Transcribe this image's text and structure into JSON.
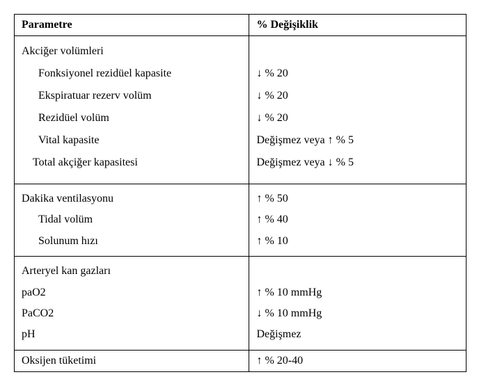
{
  "table": {
    "headers": {
      "parameter": "Parametre",
      "change": "% Değişiklik"
    },
    "rows": [
      {
        "left": [
          {
            "text": "Akciğer volümleri",
            "indent": 0
          },
          {
            "text": "Fonksiyonel rezidüel kapasite",
            "indent": 1
          },
          {
            "text": "Ekspiratuar rezerv volüm",
            "indent": 1
          },
          {
            "text": "Rezidüel volüm",
            "indent": 1
          },
          {
            "text": "Vital kapasite",
            "indent": 1
          },
          {
            "text": "Total akçiğer kapasitesi",
            "indent": 2
          }
        ],
        "right": [
          {
            "text": ""
          },
          {
            "text": "↓ % 20"
          },
          {
            "text": "↓ % 20"
          },
          {
            "text": "↓ % 20"
          },
          {
            "text": "Değişmez  veya ↑ % 5"
          },
          {
            "text": "Değişmez  veya ↓ % 5"
          }
        ]
      },
      {
        "left": [
          {
            "text": "Dakika ventilasyonu",
            "indent": 0
          },
          {
            "text": "Tidal volüm",
            "indent": 1
          },
          {
            "text": "Solunum hızı",
            "indent": 1
          }
        ],
        "right": [
          {
            "text": "↑ % 50"
          },
          {
            "text": "↑ % 40"
          },
          {
            "text": "↑ % 10"
          }
        ]
      },
      {
        "left": [
          {
            "text": "Arteryel kan gazları",
            "indent": 0
          },
          {
            "text": "paO2",
            "indent": 0
          },
          {
            "text": "PaCO2",
            "indent": 0
          },
          {
            "text": "pH",
            "indent": 0
          }
        ],
        "right": [
          {
            "text": ""
          },
          {
            "text": "↑ % 10 mmHg"
          },
          {
            "text": "↓ % 10 mmHg"
          },
          {
            "text": "Değişmez"
          }
        ]
      },
      {
        "left": [
          {
            "text": "Oksijen tüketimi",
            "indent": 0
          }
        ],
        "right": [
          {
            "text": "↑ % 20-40"
          }
        ]
      }
    ]
  }
}
